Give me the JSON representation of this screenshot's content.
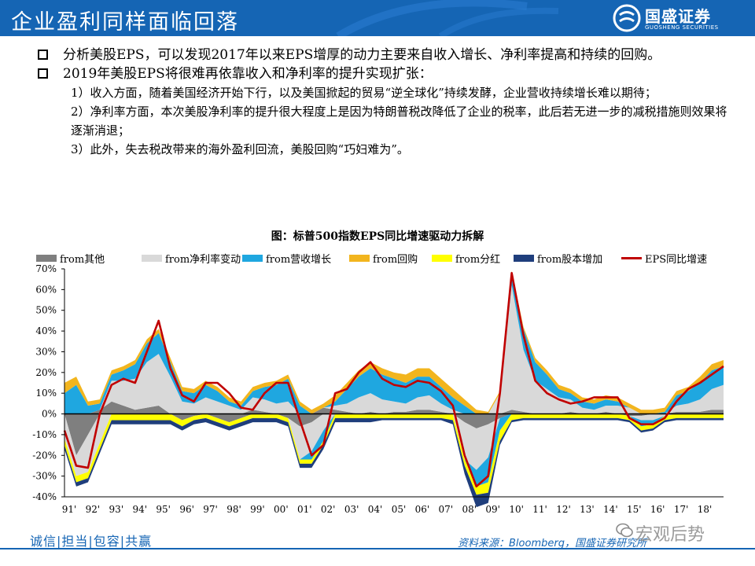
{
  "header": {
    "title": "企业盈利同样面临回落",
    "logo_name": "国盛证券",
    "logo_en": "GUOSHENG SECURITIES"
  },
  "bullets": [
    {
      "text": "分析美股EPS，可以发现2017年以来EPS增厚的动力主要来自收入增长、净利率提高和持续的回购。"
    },
    {
      "text": "2019年美股EPS将很难再依靠收入和净利率的提升实现扩张："
    }
  ],
  "sub_points": [
    "1）收入方面，随着美国经济开始下行，以及美国掀起的贸易“逆全球化”持续发酵，企业营收持续增长难以期待；",
    "2）净利率方面，本次美股净利率的提升很大程度上是因为特朗普税改降低了企业的税率，此后若无进一步的减税措施则效果将逐渐消退；",
    "3）此外，失去税改带来的海外盈利回流，美股回购“巧妇难为”。"
  ],
  "footer": {
    "slogan": "诚信|担当|包容|共赢",
    "source": "资料来源：Bloomberg，国盛证券研究所",
    "watermark": "宏观后势"
  },
  "chart_data": {
    "type": "area",
    "title": "图：标普500指数EPS同比增速驱动力拆解",
    "ylim": [
      -40,
      70
    ],
    "yticks": [
      -40,
      -30,
      -20,
      -10,
      0,
      10,
      20,
      30,
      40,
      50,
      60,
      70
    ],
    "ytick_labels": [
      "-40%",
      "-30%",
      "-20%",
      "-10%",
      "0%",
      "10%",
      "20%",
      "30%",
      "40%",
      "50%",
      "60%",
      "70%"
    ],
    "xlim": [
      1991.0,
      2019.0
    ],
    "xtick_labels": [
      "91'",
      "92'",
      "93'",
      "94'",
      "95'",
      "96'",
      "97'",
      "98'",
      "99'",
      "00'",
      "01'",
      "02'",
      "03'",
      "04'",
      "05'",
      "06'",
      "07'",
      "08'",
      "09'",
      "10'",
      "11'",
      "12'",
      "13'",
      "14'",
      "15'",
      "16'",
      "17'",
      "18'"
    ],
    "grid": false,
    "legend_position": "top",
    "x": [
      1991.0,
      1991.5,
      1992.0,
      1992.5,
      1993.0,
      1993.5,
      1994.0,
      1994.5,
      1995.0,
      1995.5,
      1996.0,
      1996.5,
      1997.0,
      1997.5,
      1998.0,
      1998.5,
      1999.0,
      1999.5,
      2000.0,
      2000.5,
      2001.0,
      2001.5,
      2002.0,
      2002.5,
      2003.0,
      2003.5,
      2004.0,
      2004.5,
      2005.0,
      2005.5,
      2006.0,
      2006.5,
      2007.0,
      2007.5,
      2008.0,
      2008.5,
      2009.0,
      2009.5,
      2010.0,
      2010.5,
      2011.0,
      2011.5,
      2012.0,
      2012.5,
      2013.0,
      2013.5,
      2014.0,
      2014.5,
      2015.0,
      2015.5,
      2016.0,
      2016.5,
      2017.0,
      2017.5,
      2018.0,
      2018.5,
      2019.0
    ],
    "series": [
      {
        "name": "from其他",
        "kind": "area",
        "color": "#7f7f7f",
        "values": [
          0,
          -20,
          -10,
          2,
          6,
          4,
          2,
          3,
          4,
          0,
          -3,
          -1,
          0,
          -2,
          -4,
          -2,
          2,
          1,
          0,
          -2,
          -6,
          -4,
          3,
          2,
          1,
          0,
          1,
          0,
          1,
          1,
          2,
          2,
          1,
          0,
          -4,
          -7,
          -5,
          -2,
          2,
          1,
          0,
          0,
          0,
          1,
          0,
          0,
          1,
          0,
          -1,
          -1,
          0,
          0,
          1,
          1,
          1,
          2,
          2
        ]
      },
      {
        "name": "from净利率变动",
        "kind": "area",
        "color": "#d9d9d9",
        "values": [
          -12,
          -10,
          -18,
          -14,
          10,
          12,
          15,
          22,
          25,
          18,
          6,
          5,
          8,
          6,
          4,
          2,
          6,
          6,
          5,
          6,
          -16,
          -14,
          -8,
          2,
          4,
          8,
          9,
          7,
          5,
          4,
          6,
          7,
          4,
          2,
          -18,
          -20,
          -16,
          10,
          60,
          30,
          16,
          12,
          8,
          6,
          3,
          2,
          3,
          4,
          3,
          -2,
          -3,
          -1,
          3,
          4,
          6,
          10,
          12
        ]
      },
      {
        "name": "from营收增长",
        "kind": "area",
        "color": "#1fa7e0",
        "values": [
          10,
          14,
          4,
          3,
          3,
          5,
          7,
          9,
          10,
          7,
          5,
          5,
          6,
          5,
          2,
          2,
          3,
          6,
          9,
          11,
          4,
          -4,
          -5,
          2,
          7,
          10,
          12,
          12,
          11,
          10,
          10,
          9,
          8,
          6,
          4,
          -8,
          -12,
          -6,
          6,
          10,
          9,
          7,
          4,
          3,
          3,
          3,
          3,
          2,
          0,
          -3,
          -2,
          1,
          5,
          6,
          8,
          9,
          9
        ]
      },
      {
        "name": "from回购",
        "kind": "area",
        "color": "#f2b51e",
        "values": [
          5,
          4,
          2,
          2,
          2,
          2,
          2,
          2,
          2,
          2,
          2,
          2,
          2,
          2,
          2,
          2,
          2,
          2,
          2,
          2,
          2,
          2,
          2,
          3,
          3,
          3,
          3,
          3,
          3,
          4,
          4,
          4,
          4,
          4,
          3,
          2,
          1,
          1,
          1,
          1,
          2,
          2,
          2,
          2,
          2,
          2,
          2,
          2,
          2,
          2,
          2,
          2,
          2,
          2,
          3,
          3,
          3
        ]
      },
      {
        "name": "from分红",
        "kind": "area",
        "color": "#ffff00",
        "values": [
          -3,
          -3,
          -3,
          -3,
          -3,
          -3,
          -3,
          -3,
          -3,
          -3,
          -3,
          -2,
          -2,
          -2,
          -2,
          -2,
          -2,
          -2,
          -2,
          -2,
          -2,
          -2,
          -2,
          -2,
          -2,
          -2,
          -2,
          -2,
          -2,
          -2,
          -2,
          -2,
          -2,
          -3,
          -3,
          -4,
          -5,
          -5,
          -3,
          -2,
          -2,
          -2,
          -2,
          -2,
          -2,
          -2,
          -2,
          -2,
          -2,
          -2,
          -2,
          -2,
          -2,
          -2,
          -2,
          -2,
          -2
        ]
      },
      {
        "name": "from股本增加",
        "kind": "area",
        "color": "#1f3e7c",
        "values": [
          -2,
          -2,
          -2,
          -2,
          -2,
          -2,
          -2,
          -2,
          -2,
          -2,
          -2,
          -2,
          -2,
          -2,
          -2,
          -2,
          -2,
          -2,
          -2,
          -2,
          -2,
          -2,
          -2,
          -2,
          -2,
          -2,
          -2,
          -1,
          -1,
          -1,
          -1,
          -1,
          -1,
          -2,
          -4,
          -6,
          -5,
          -2,
          -1,
          -1,
          -1,
          -1,
          -1,
          -1,
          -1,
          -1,
          -1,
          -1,
          -1,
          -1,
          -1,
          -1,
          -1,
          -1,
          -1,
          -1,
          -1
        ]
      },
      {
        "name": "EPS同比增速",
        "kind": "line",
        "color": "#c00000",
        "values": [
          -8,
          -25,
          -26,
          0,
          14,
          17,
          15,
          30,
          45,
          22,
          9,
          6,
          15,
          15,
          10,
          3,
          2,
          10,
          15,
          15,
          -3,
          -20,
          -15,
          10,
          12,
          20,
          25,
          17,
          14,
          13,
          16,
          15,
          11,
          4,
          -20,
          -35,
          -30,
          10,
          68,
          38,
          16,
          10,
          7,
          5,
          6,
          8,
          8,
          8,
          -2,
          -5,
          -5,
          -2,
          6,
          12,
          15,
          19,
          23
        ]
      }
    ]
  }
}
